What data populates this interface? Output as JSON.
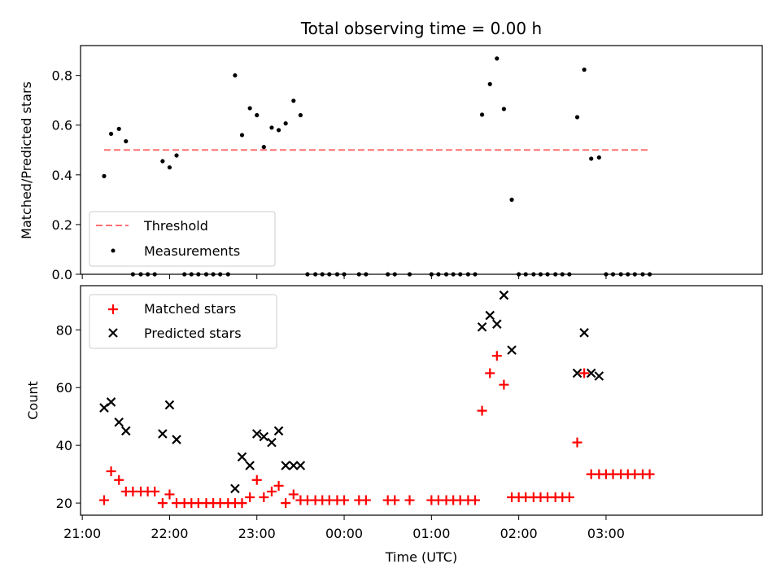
{
  "chart_data": [
    {
      "type": "scatter",
      "title": "Total observing time = 0.00 h",
      "ylabel": "Matched/Predicted stars",
      "ylim": [
        0,
        0.92
      ],
      "yticks": [
        "0.0",
        "0.2",
        "0.4",
        "0.6",
        "0.8"
      ],
      "threshold": {
        "name": "Threshold",
        "value": 0.5,
        "x_range": [
          21.25,
          27.5
        ],
        "color": "#ff7070"
      },
      "legend_position": "lower-left",
      "series": [
        {
          "name": "Measurements",
          "color": "#000000",
          "points": [
            [
              21.25,
              0.395
            ],
            [
              21.33,
              0.565
            ],
            [
              21.42,
              0.585
            ],
            [
              21.5,
              0.535
            ],
            [
              21.58,
              0.0
            ],
            [
              21.67,
              0.0
            ],
            [
              21.75,
              0.0
            ],
            [
              21.83,
              0.0
            ],
            [
              21.92,
              0.455
            ],
            [
              22.0,
              0.43
            ],
            [
              22.08,
              0.478
            ],
            [
              22.17,
              0.0
            ],
            [
              22.25,
              0.0
            ],
            [
              22.33,
              0.0
            ],
            [
              22.42,
              0.0
            ],
            [
              22.5,
              0.0
            ],
            [
              22.58,
              0.0
            ],
            [
              22.67,
              0.0
            ],
            [
              22.75,
              0.8
            ],
            [
              22.83,
              0.56
            ],
            [
              22.92,
              0.668
            ],
            [
              23.0,
              0.64
            ],
            [
              23.08,
              0.512
            ],
            [
              23.17,
              0.59
            ],
            [
              23.25,
              0.58
            ],
            [
              23.33,
              0.607
            ],
            [
              23.42,
              0.698
            ],
            [
              23.5,
              0.64
            ],
            [
              23.58,
              0.0
            ],
            [
              23.67,
              0.0
            ],
            [
              23.75,
              0.0
            ],
            [
              23.83,
              0.0
            ],
            [
              23.92,
              0.0
            ],
            [
              24.0,
              0.0
            ],
            [
              24.17,
              0.0
            ],
            [
              24.25,
              0.0
            ],
            [
              24.5,
              0.0
            ],
            [
              24.58,
              0.0
            ],
            [
              24.75,
              0.0
            ],
            [
              25.0,
              0.0
            ],
            [
              25.08,
              0.0
            ],
            [
              25.17,
              0.0
            ],
            [
              25.25,
              0.0
            ],
            [
              25.33,
              0.0
            ],
            [
              25.42,
              0.0
            ],
            [
              25.5,
              0.0
            ],
            [
              25.58,
              0.642
            ],
            [
              25.67,
              0.765
            ],
            [
              25.75,
              0.868
            ],
            [
              25.83,
              0.665
            ],
            [
              25.92,
              0.3
            ],
            [
              26.0,
              0.0
            ],
            [
              26.08,
              0.0
            ],
            [
              26.17,
              0.0
            ],
            [
              26.25,
              0.0
            ],
            [
              26.33,
              0.0
            ],
            [
              26.42,
              0.0
            ],
            [
              26.5,
              0.0
            ],
            [
              26.58,
              0.0
            ],
            [
              26.67,
              0.632
            ],
            [
              26.75,
              0.823
            ],
            [
              26.83,
              0.465
            ],
            [
              26.92,
              0.47
            ],
            [
              27.0,
              0.0
            ],
            [
              27.08,
              0.0
            ],
            [
              27.17,
              0.0
            ],
            [
              27.25,
              0.0
            ],
            [
              27.33,
              0.0
            ],
            [
              27.42,
              0.0
            ],
            [
              27.5,
              0.0
            ]
          ]
        }
      ]
    },
    {
      "type": "scatter",
      "xlabel": "Time (UTC)",
      "ylabel": "Count",
      "xlim": [
        20.98,
        28.79
      ],
      "ylim": [
        15.8,
        95.3
      ],
      "xticks": [
        "21:00",
        "22:00",
        "23:00",
        "00:00",
        "01:00",
        "02:00",
        "03:00"
      ],
      "yticks": [
        "20",
        "40",
        "60",
        "80"
      ],
      "legend_position": "upper-left",
      "series": [
        {
          "name": "Matched stars",
          "color": "#ff0000",
          "marker": "plus",
          "points": [
            [
              21.25,
              21
            ],
            [
              21.33,
              31
            ],
            [
              21.42,
              28
            ],
            [
              21.5,
              24
            ],
            [
              21.58,
              24
            ],
            [
              21.67,
              24
            ],
            [
              21.75,
              24
            ],
            [
              21.83,
              24
            ],
            [
              21.92,
              20
            ],
            [
              22.0,
              23
            ],
            [
              22.08,
              20
            ],
            [
              22.17,
              20
            ],
            [
              22.25,
              20
            ],
            [
              22.33,
              20
            ],
            [
              22.42,
              20
            ],
            [
              22.5,
              20
            ],
            [
              22.58,
              20
            ],
            [
              22.67,
              20
            ],
            [
              22.75,
              20
            ],
            [
              22.83,
              20
            ],
            [
              22.92,
              22
            ],
            [
              23.0,
              28
            ],
            [
              23.08,
              22
            ],
            [
              23.17,
              24
            ],
            [
              23.25,
              26
            ],
            [
              23.33,
              20
            ],
            [
              23.42,
              23
            ],
            [
              23.5,
              21
            ],
            [
              23.58,
              21
            ],
            [
              23.67,
              21
            ],
            [
              23.75,
              21
            ],
            [
              23.83,
              21
            ],
            [
              23.92,
              21
            ],
            [
              24.0,
              21
            ],
            [
              24.17,
              21
            ],
            [
              24.25,
              21
            ],
            [
              24.5,
              21
            ],
            [
              24.58,
              21
            ],
            [
              24.75,
              21
            ],
            [
              25.0,
              21
            ],
            [
              25.08,
              21
            ],
            [
              25.17,
              21
            ],
            [
              25.25,
              21
            ],
            [
              25.33,
              21
            ],
            [
              25.42,
              21
            ],
            [
              25.5,
              21
            ],
            [
              25.58,
              52
            ],
            [
              25.67,
              65
            ],
            [
              25.75,
              71
            ],
            [
              25.83,
              61
            ],
            [
              25.92,
              22
            ],
            [
              26.0,
              22
            ],
            [
              26.08,
              22
            ],
            [
              26.17,
              22
            ],
            [
              26.25,
              22
            ],
            [
              26.33,
              22
            ],
            [
              26.42,
              22
            ],
            [
              26.5,
              22
            ],
            [
              26.58,
              22
            ],
            [
              26.67,
              41
            ],
            [
              26.75,
              65
            ],
            [
              26.83,
              30
            ],
            [
              26.92,
              30
            ],
            [
              27.0,
              30
            ],
            [
              27.08,
              30
            ],
            [
              27.17,
              30
            ],
            [
              27.25,
              30
            ],
            [
              27.33,
              30
            ],
            [
              27.42,
              30
            ],
            [
              27.5,
              30
            ]
          ]
        },
        {
          "name": "Predicted stars",
          "color": "#000000",
          "marker": "x",
          "points": [
            [
              21.25,
              53
            ],
            [
              21.33,
              55
            ],
            [
              21.42,
              48
            ],
            [
              21.5,
              45
            ],
            [
              21.92,
              44
            ],
            [
              22.0,
              54
            ],
            [
              22.08,
              42
            ],
            [
              22.75,
              25
            ],
            [
              22.83,
              36
            ],
            [
              22.92,
              33
            ],
            [
              23.0,
              44
            ],
            [
              23.08,
              43
            ],
            [
              23.17,
              41
            ],
            [
              23.25,
              45
            ],
            [
              23.33,
              33
            ],
            [
              23.42,
              33
            ],
            [
              23.5,
              33
            ],
            [
              25.58,
              81
            ],
            [
              25.67,
              85
            ],
            [
              25.75,
              82
            ],
            [
              25.83,
              92
            ],
            [
              25.92,
              73
            ],
            [
              26.67,
              65
            ],
            [
              26.75,
              79
            ],
            [
              26.83,
              65
            ],
            [
              26.92,
              64
            ]
          ]
        }
      ]
    }
  ]
}
